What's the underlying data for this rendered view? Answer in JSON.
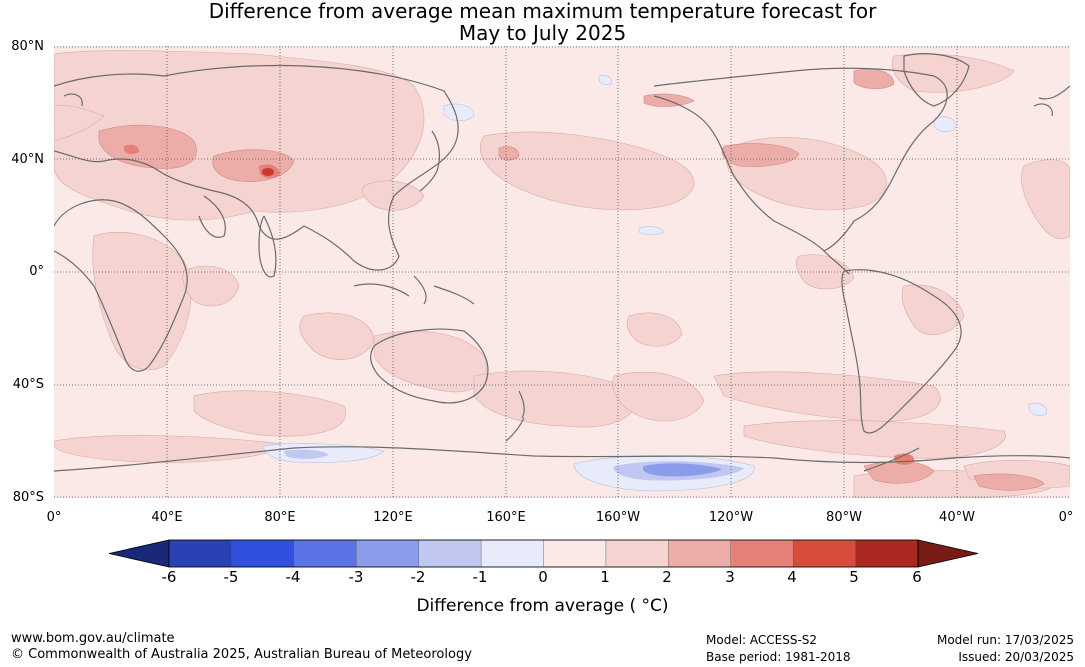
{
  "title": {
    "line1": "Difference from average mean maximum temperature forecast for",
    "line2": "May to July 2025"
  },
  "map": {
    "projection": "equirectangular-pacific-centred",
    "lat_labels": [
      "80°N",
      "40°N",
      "0°",
      "40°S",
      "80°S"
    ],
    "lon_labels": [
      "0°",
      "40°E",
      "80°E",
      "120°E",
      "160°E",
      "160°W",
      "120°W",
      "80°W",
      "40°W",
      "0°"
    ],
    "background_color": "#fbe9e7",
    "coastline_color": "#6b6b6b"
  },
  "colorbar": {
    "title": "Difference from average ( °C)",
    "tick_labels": [
      "-6",
      "-5",
      "-4",
      "-3",
      "-2",
      "-1",
      "0",
      "1",
      "2",
      "3",
      "4",
      "5",
      "6"
    ],
    "colors": [
      "#192877",
      "#2a41b3",
      "#3150e0",
      "#5a74e5",
      "#8a9cea",
      "#c0c8f1",
      "#e8ebfa",
      "#fbe9e7",
      "#f4d3d1",
      "#ecaca7",
      "#e68178",
      "#d84c3e",
      "#aa2a22",
      "#7a1a14"
    ]
  },
  "footer": {
    "website": "www.bom.gov.au/climate",
    "copyright": "© Commonwealth of Australia 2025, Australian Bureau of Meteorology",
    "model": "Model: ACCESS-S2",
    "base_period": "Base period: 1981-2018",
    "model_run": "Model run: 17/03/2025",
    "issued": "Issued: 20/03/2025"
  }
}
